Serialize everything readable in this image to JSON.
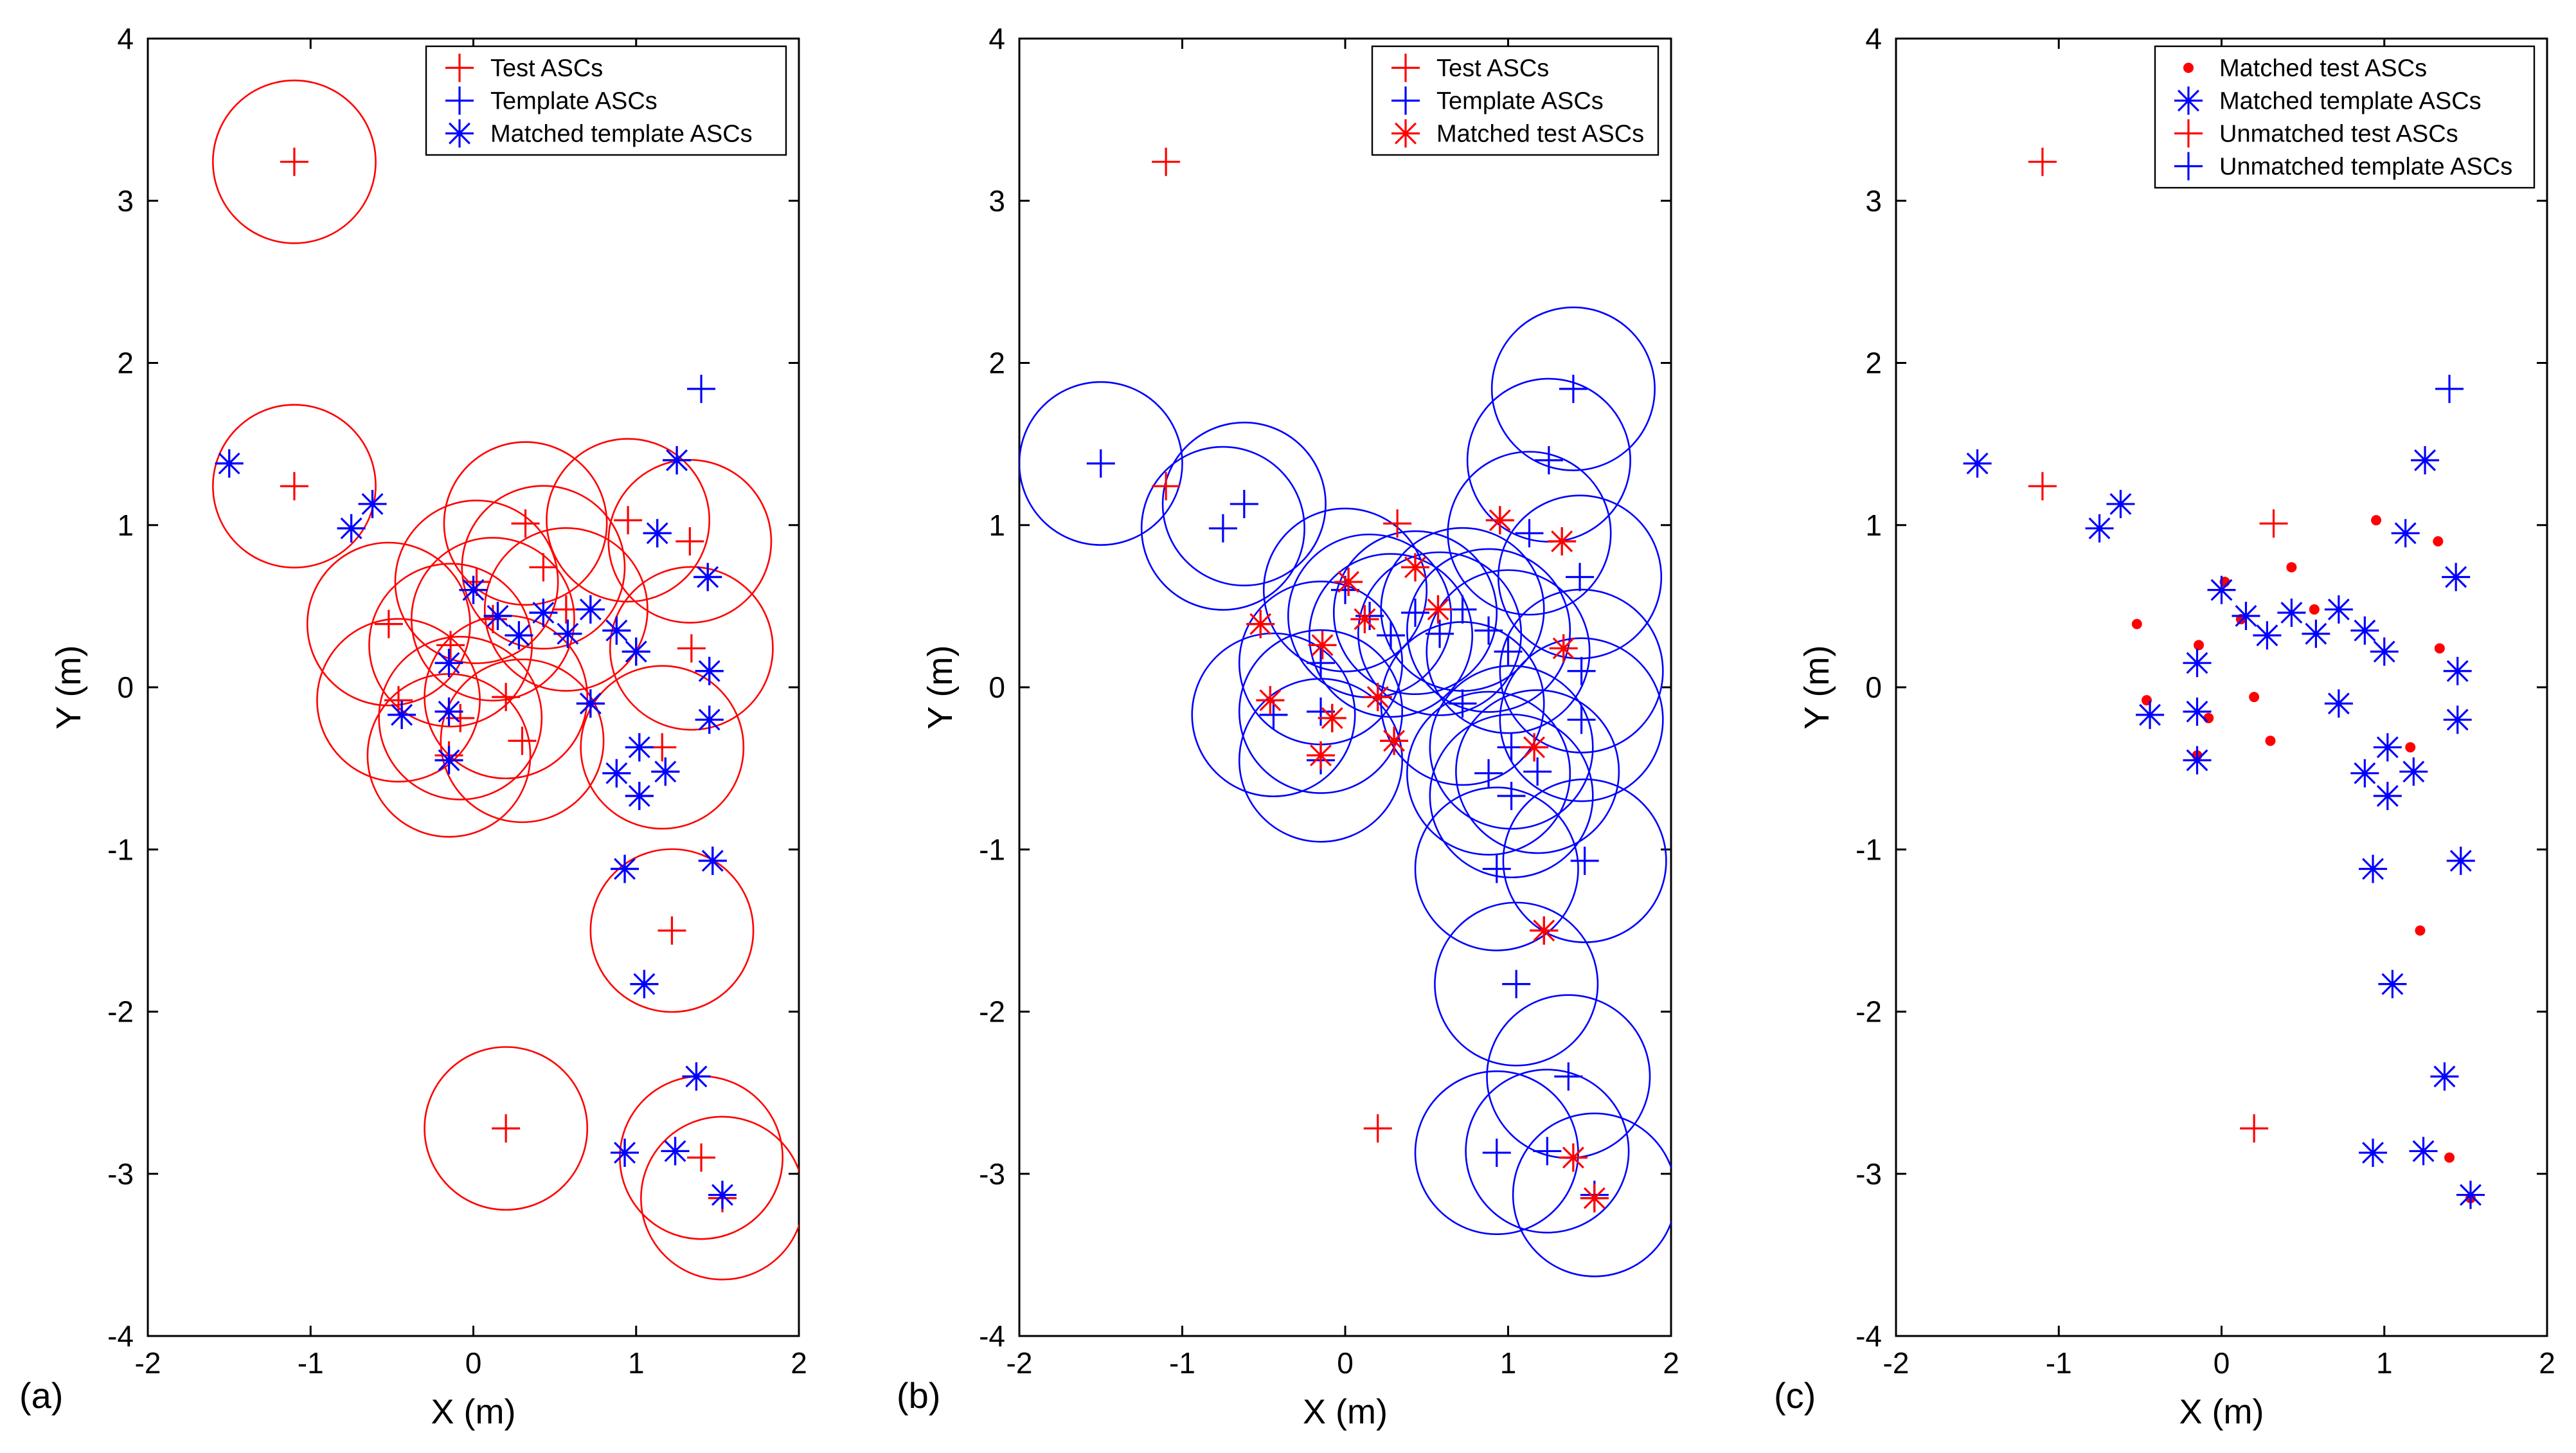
{
  "colors": {
    "test": "#ff0000",
    "template": "#0000ff",
    "axis": "#000000"
  },
  "chart_data": [
    {
      "type": "scatter",
      "panel": "(a)",
      "xlabel": "X (m)",
      "ylabel": "Y (m)",
      "xlim": [
        -2,
        2
      ],
      "ylim": [
        -4,
        4
      ],
      "xticks": [
        -2,
        -1,
        0,
        1,
        2
      ],
      "yticks": [
        -4,
        -3,
        -2,
        -1,
        0,
        1,
        2,
        3,
        4
      ],
      "legend": {
        "position": "top-right",
        "entries": [
          {
            "label": "Test ASCs",
            "marker": "plus",
            "color": "test"
          },
          {
            "label": "Template ASCs",
            "marker": "plus",
            "color": "template"
          },
          {
            "label": "Matched template ASCs",
            "marker": "star",
            "color": "template"
          }
        ]
      },
      "circles": {
        "set": "test",
        "radius": 0.5,
        "color": "test"
      },
      "series": [
        {
          "name": "Test ASCs",
          "set": "test",
          "marker": "plus",
          "color": "test"
        },
        {
          "name": "Template ASCs",
          "set": "template",
          "marker": "plus",
          "color": "template"
        },
        {
          "name": "Matched template ASCs",
          "set": "template_matched",
          "marker": "star",
          "color": "template"
        }
      ]
    },
    {
      "type": "scatter",
      "panel": "(b)",
      "xlabel": "X (m)",
      "ylabel": "Y (m)",
      "xlim": [
        -2,
        2
      ],
      "ylim": [
        -4,
        4
      ],
      "xticks": [
        -2,
        -1,
        0,
        1,
        2
      ],
      "yticks": [
        -4,
        -3,
        -2,
        -1,
        0,
        1,
        2,
        3,
        4
      ],
      "legend": {
        "position": "top-right",
        "entries": [
          {
            "label": "Test ASCs",
            "marker": "plus",
            "color": "test"
          },
          {
            "label": "Template ASCs",
            "marker": "plus",
            "color": "template"
          },
          {
            "label": "Matched test ASCs",
            "marker": "star",
            "color": "test"
          }
        ]
      },
      "circles": {
        "set": "template",
        "radius": 0.5,
        "color": "template"
      },
      "series": [
        {
          "name": "Test ASCs",
          "set": "test",
          "marker": "plus",
          "color": "test"
        },
        {
          "name": "Template ASCs",
          "set": "template",
          "marker": "plus",
          "color": "template"
        },
        {
          "name": "Matched test ASCs",
          "set": "test_matched",
          "marker": "star",
          "color": "test"
        }
      ]
    },
    {
      "type": "scatter",
      "panel": "(c)",
      "xlabel": "X (m)",
      "ylabel": "Y (m)",
      "xlim": [
        -2,
        2
      ],
      "ylim": [
        -4,
        4
      ],
      "xticks": [
        -2,
        -1,
        0,
        1,
        2
      ],
      "yticks": [
        -4,
        -3,
        -2,
        -1,
        0,
        1,
        2,
        3,
        4
      ],
      "legend": {
        "position": "top-right",
        "entries": [
          {
            "label": "Matched test ASCs",
            "marker": "dot",
            "color": "test"
          },
          {
            "label": "Matched template ASCs",
            "marker": "star",
            "color": "template"
          },
          {
            "label": "Unmatched test ASCs",
            "marker": "plus",
            "color": "test"
          },
          {
            "label": "Unmatched template ASCs",
            "marker": "plus",
            "color": "template"
          }
        ]
      },
      "circles": null,
      "series": [
        {
          "name": "Matched test ASCs",
          "set": "test_matched",
          "marker": "dot",
          "color": "test"
        },
        {
          "name": "Matched template ASCs",
          "set": "template_matched",
          "marker": "star",
          "color": "template"
        },
        {
          "name": "Unmatched test ASCs",
          "set": "test_unmatched",
          "marker": "plus",
          "color": "test"
        },
        {
          "name": "Unmatched template ASCs",
          "set": "template_unmatched",
          "marker": "plus",
          "color": "template"
        }
      ]
    }
  ],
  "points": {
    "test_matched": [
      [
        -0.52,
        0.39
      ],
      [
        -0.46,
        -0.08
      ],
      [
        -0.15,
        -0.42
      ],
      [
        -0.14,
        0.26
      ],
      [
        -0.08,
        -0.19
      ],
      [
        0.02,
        0.65
      ],
      [
        0.12,
        0.42
      ],
      [
        0.2,
        -0.06
      ],
      [
        0.3,
        -0.33
      ],
      [
        0.43,
        0.74
      ],
      [
        0.57,
        0.48
      ],
      [
        0.95,
        1.03
      ],
      [
        1.16,
        -0.37
      ],
      [
        1.33,
        0.9
      ],
      [
        1.34,
        0.24
      ],
      [
        1.22,
        -1.5
      ],
      [
        1.4,
        -2.9
      ],
      [
        1.53,
        -3.15
      ]
    ],
    "test_unmatched": [
      [
        -1.1,
        3.24
      ],
      [
        -1.1,
        1.24
      ],
      [
        0.32,
        1.01
      ],
      [
        0.2,
        -2.72
      ]
    ],
    "template_matched": [
      [
        -1.5,
        1.38
      ],
      [
        -0.62,
        1.13
      ],
      [
        -0.75,
        0.98
      ],
      [
        -0.44,
        -0.17
      ],
      [
        -0.15,
        0.15
      ],
      [
        -0.15,
        -0.15
      ],
      [
        -0.15,
        -0.45
      ],
      [
        0.0,
        0.6
      ],
      [
        0.15,
        0.44
      ],
      [
        0.28,
        0.32
      ],
      [
        0.43,
        0.46
      ],
      [
        0.58,
        0.33
      ],
      [
        0.72,
        0.48
      ],
      [
        0.72,
        -0.1
      ],
      [
        0.88,
        0.35
      ],
      [
        0.88,
        -0.53
      ],
      [
        1.0,
        0.22
      ],
      [
        1.02,
        -0.37
      ],
      [
        1.02,
        -0.67
      ],
      [
        1.13,
        0.95
      ],
      [
        1.18,
        -0.52
      ],
      [
        1.25,
        1.4
      ],
      [
        1.44,
        0.68
      ],
      [
        1.45,
        0.1
      ],
      [
        1.45,
        -0.2
      ],
      [
        0.93,
        -1.12
      ],
      [
        1.47,
        -1.07
      ],
      [
        1.05,
        -1.83
      ],
      [
        1.37,
        -2.4
      ],
      [
        0.93,
        -2.87
      ],
      [
        1.24,
        -2.86
      ],
      [
        1.53,
        -3.13
      ]
    ],
    "template_unmatched": [
      [
        1.4,
        1.84
      ]
    ]
  }
}
